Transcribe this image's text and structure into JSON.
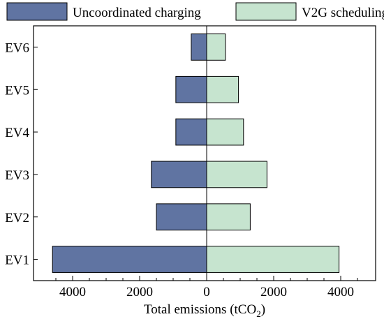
{
  "chart_data": {
    "type": "bar",
    "orientation": "horizontal",
    "layout": "back-to-back (diverging)",
    "categories": [
      "EV1",
      "EV2",
      "EV3",
      "EV4",
      "EV5",
      "EV6"
    ],
    "series": [
      {
        "name": "Uncoordinated charging",
        "side": "left",
        "color": "#6074a2",
        "values": [
          4600,
          1500,
          1650,
          920,
          920,
          460
        ]
      },
      {
        "name": "V2G scheduling",
        "side": "right",
        "color": "#c6e4cf",
        "values": [
          3950,
          1300,
          1800,
          1100,
          950,
          560
        ]
      }
    ],
    "xlabel": {
      "main": "Total emissions (tCO",
      "sub": "2",
      "close": ")"
    },
    "xlim": [
      -4800,
      4800
    ],
    "xticks": [
      -4000,
      -2000,
      0,
      2000,
      4000
    ],
    "xtick_labels": [
      "4000",
      "2000",
      "0",
      "2000",
      "4000"
    ],
    "legend_position": "top",
    "grid": false
  }
}
